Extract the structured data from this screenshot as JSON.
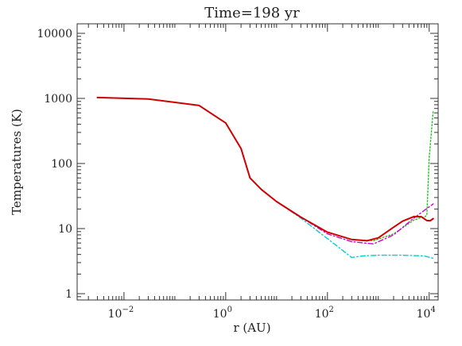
{
  "chart_data": {
    "type": "line",
    "title": "Time=198 yr",
    "xlabel": "r (AU)",
    "ylabel": "Temperatures (K)",
    "xscale": "log",
    "yscale": "log",
    "xlim": [
      0.0012,
      15000
    ],
    "ylim": [
      0.8,
      14000
    ],
    "grid": false,
    "x_ticks": [
      {
        "value": 0.01,
        "base": "10",
        "exp": "−2"
      },
      {
        "value": 1,
        "base": "10",
        "exp": "0"
      },
      {
        "value": 100,
        "base": "10",
        "exp": "2"
      },
      {
        "value": 10000,
        "base": "10",
        "exp": "4"
      }
    ],
    "y_ticks": [
      {
        "value": 1,
        "label": "1"
      },
      {
        "value": 10,
        "label": "10"
      },
      {
        "value": 100,
        "label": "100"
      },
      {
        "value": 1000,
        "label": "1000"
      },
      {
        "value": 10000,
        "label": "10000"
      }
    ],
    "series": [
      {
        "color": "#22c022",
        "style": "dotted",
        "x": [
          0.003,
          0.03,
          0.3,
          1.0,
          2.0,
          3.0,
          5.0,
          10,
          30,
          100,
          300,
          800,
          2000,
          5000,
          7000,
          8000,
          9000,
          10000,
          12000
        ],
        "y": [
          1030,
          980,
          780,
          420,
          170,
          60,
          40,
          26,
          15,
          8.8,
          6.8,
          6.5,
          8.3,
          13.5,
          14.8,
          15.0,
          16.0,
          120,
          650
        ]
      },
      {
        "color": "#d000d0",
        "style": "dash-dot",
        "x": [
          0.003,
          0.03,
          0.3,
          1.0,
          2.0,
          3.0,
          5.0,
          10,
          30,
          100,
          300,
          800,
          2000,
          5000,
          8000,
          12000
        ],
        "y": [
          1030,
          980,
          780,
          420,
          170,
          60,
          40,
          26,
          15,
          8.3,
          6.3,
          5.8,
          8.0,
          14.5,
          19.0,
          24.0
        ]
      },
      {
        "color": "#00d0d0",
        "style": "dash-dot",
        "x": [
          0.003,
          0.03,
          0.3,
          1.0,
          2.0,
          3.0,
          5.0,
          10,
          30,
          100,
          300,
          500,
          1000,
          3000,
          8000,
          12000
        ],
        "y": [
          1030,
          980,
          780,
          420,
          170,
          60,
          40,
          26,
          14.5,
          7.0,
          3.6,
          3.8,
          3.9,
          3.9,
          3.8,
          3.5
        ]
      },
      {
        "color": "#d00000",
        "style": "solid",
        "x": [
          0.003,
          0.03,
          0.3,
          1.0,
          2.0,
          3.0,
          5.0,
          10,
          30,
          100,
          300,
          600,
          1000,
          2000,
          3000,
          5000,
          7000,
          9000,
          10500,
          12000
        ],
        "y": [
          1030,
          980,
          780,
          420,
          170,
          60,
          40,
          26,
          15,
          8.8,
          6.8,
          6.5,
          7.2,
          10.5,
          13.0,
          15.3,
          15.2,
          13.3,
          13.2,
          14.2
        ]
      }
    ]
  }
}
